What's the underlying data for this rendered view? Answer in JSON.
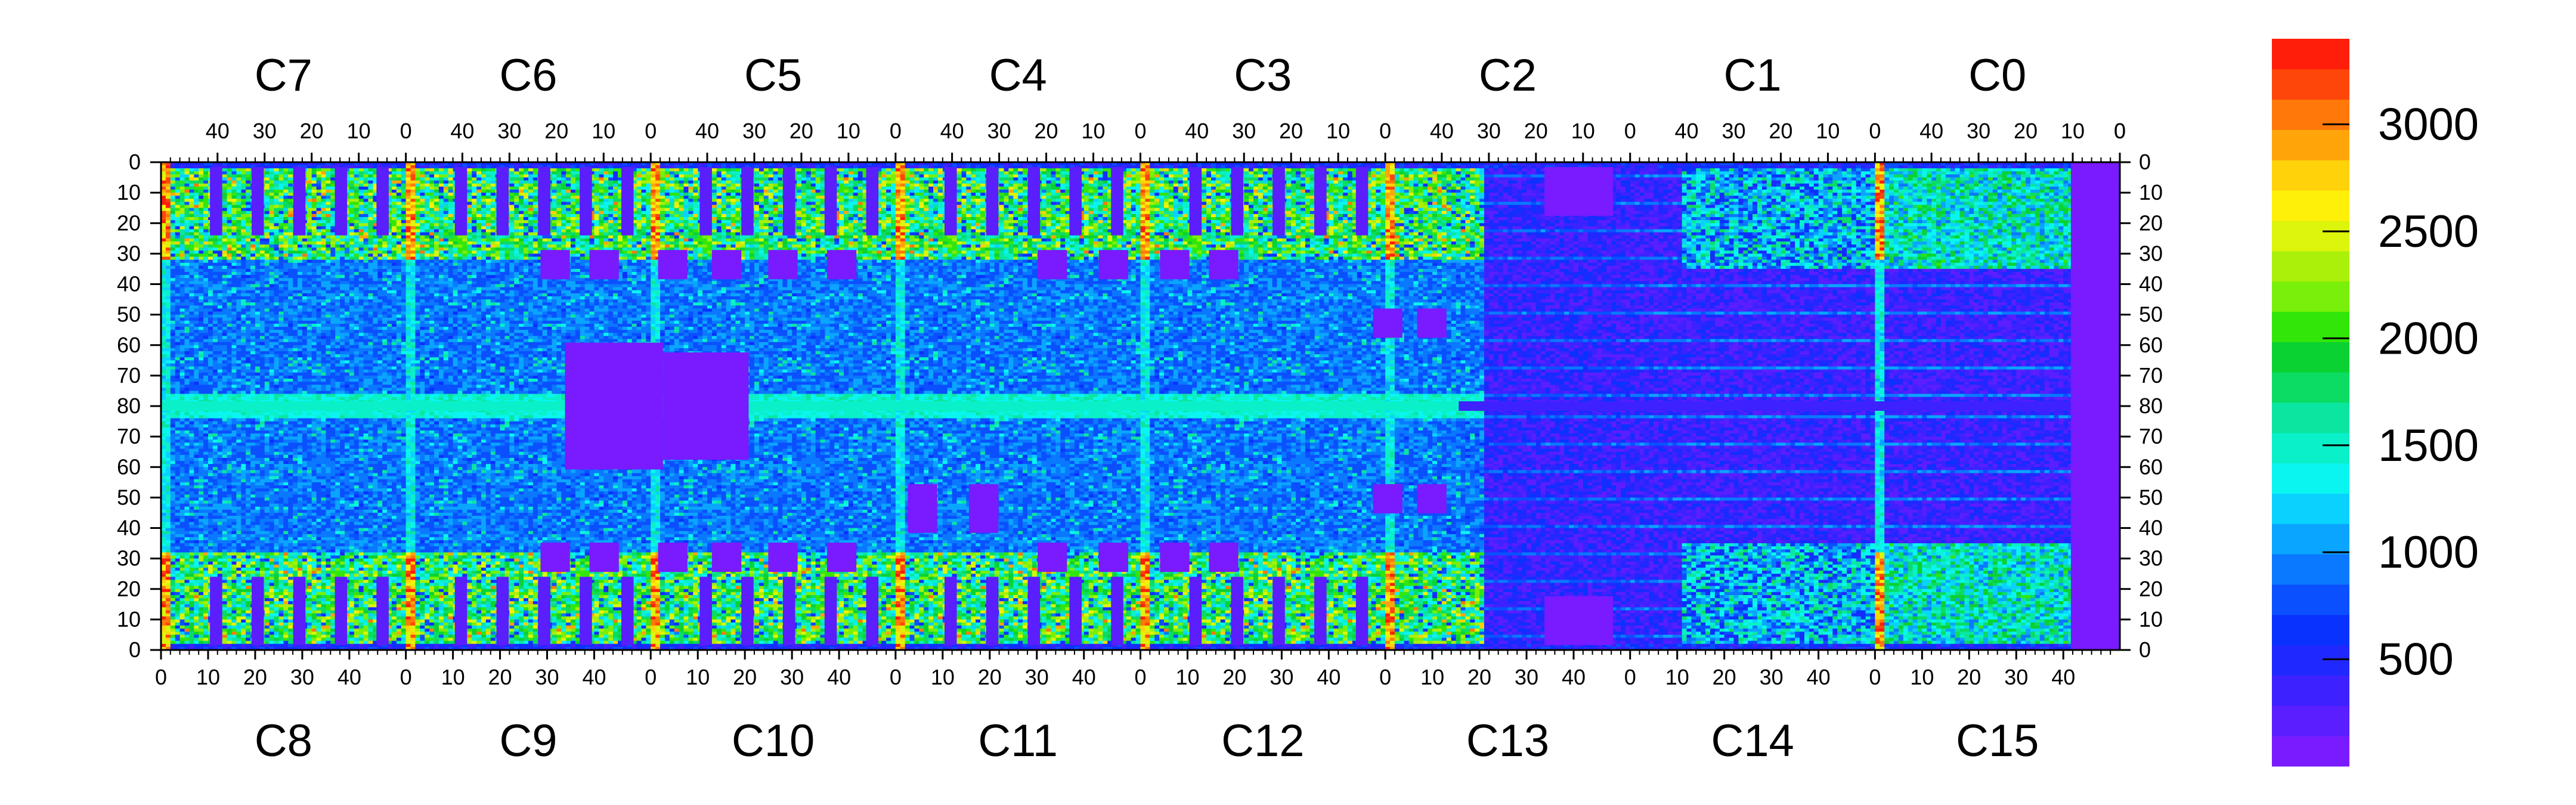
{
  "chart_data": {
    "type": "heatmap",
    "title": "",
    "xlabel": "",
    "ylabel": "",
    "top_row_chips": [
      "C7",
      "C6",
      "C5",
      "C4",
      "C3",
      "C2",
      "C1",
      "C0"
    ],
    "bottom_row_chips": [
      "C8",
      "C9",
      "C10",
      "C11",
      "C12",
      "C13",
      "C14",
      "C15"
    ],
    "chip_columns": 52,
    "chip_rows": 80,
    "top_axis_ticks": [
      "40",
      "30",
      "20",
      "10",
      "0"
    ],
    "bottom_axis_ticks": [
      "0",
      "10",
      "20",
      "30",
      "40"
    ],
    "left_axis_ticks": [
      "0",
      "10",
      "20",
      "30",
      "40",
      "50",
      "60",
      "70",
      "80",
      "70",
      "60",
      "50",
      "40",
      "30",
      "20",
      "10",
      "0"
    ],
    "right_axis_ticks": [
      "0",
      "10",
      "20",
      "30",
      "40",
      "50",
      "60",
      "70",
      "80",
      "70",
      "60",
      "50",
      "40",
      "30",
      "20",
      "10",
      "0"
    ],
    "z_range": [
      0,
      3400
    ],
    "colorbar_ticks": [
      "500",
      "1000",
      "1500",
      "2000",
      "2500",
      "3000"
    ],
    "colorbar_tick_values": [
      500,
      1000,
      1500,
      2000,
      2500,
      3000
    ],
    "palette": [
      "#7a1aff",
      "#5a1eff",
      "#3d22ff",
      "#1f28ff",
      "#0a32ff",
      "#0a50ff",
      "#0a78ff",
      "#0aa5ff",
      "#0ad2ff",
      "#0af5f0",
      "#0af0c8",
      "#0ae6a0",
      "#0adc64",
      "#0ad232",
      "#32e60a",
      "#78f00a",
      "#aaf00a",
      "#dcf50a",
      "#fff00a",
      "#ffd20a",
      "#ffa50a",
      "#ff780a",
      "#ff460a",
      "#ff1e0a"
    ],
    "regions": [
      {
        "chips": "C6-C3 and C9-C12",
        "level": "high (1500-2500)",
        "pattern": "dense green/yellow pixels"
      },
      {
        "chips": "C13-C14 right half, C2/C1 band",
        "level": "low (0-500)",
        "pattern": "purple with horizontal streaks"
      },
      {
        "chips": "chip boundary columns x=0",
        "level": "very high (2500-3400)",
        "pattern": "red/yellow vertical stripes"
      },
      {
        "chips": "middle row y=80",
        "level": "medium (1500)",
        "pattern": "horizontal green line"
      }
    ]
  }
}
